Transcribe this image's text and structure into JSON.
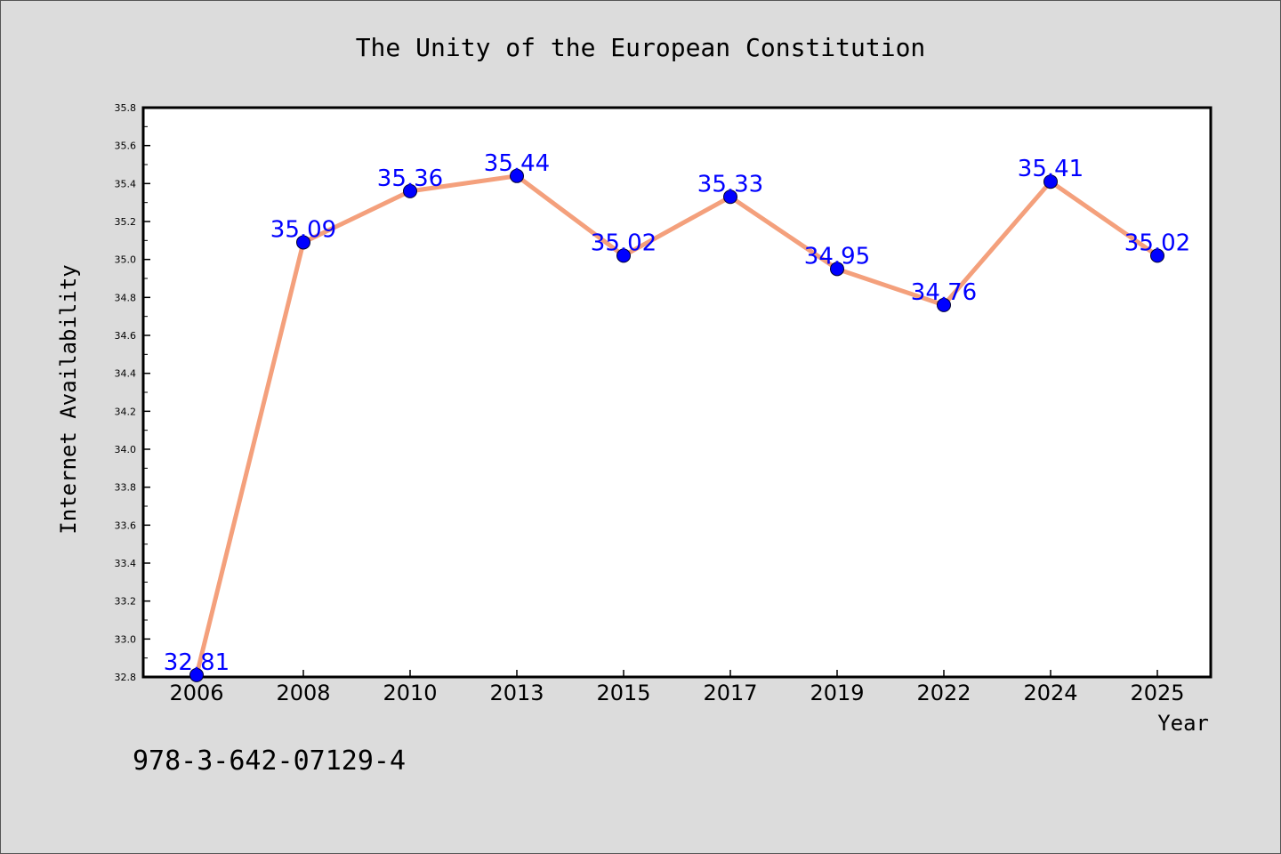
{
  "chart_data": {
    "type": "line",
    "title": "The Unity of the European Constitution",
    "xlabel": "Year",
    "ylabel": "Internet Availability",
    "categories": [
      "2006",
      "2008",
      "2010",
      "2013",
      "2015",
      "2017",
      "2019",
      "2022",
      "2024",
      "2025"
    ],
    "series": [
      {
        "values": [
          32.81,
          35.09,
          35.36,
          35.44,
          35.02,
          35.33,
          34.95,
          34.76,
          35.41,
          35.02
        ],
        "data_labels": [
          "32.81",
          "35.09",
          "35.36",
          "35.44",
          "35.02",
          "35.33",
          "34.95",
          "34.76",
          "35.41",
          "35.02"
        ]
      }
    ],
    "ylim": [
      32.8,
      35.8
    ],
    "yticks": [
      "32.8",
      "33.0",
      "33.2",
      "33.4",
      "33.6",
      "33.8",
      "34.0",
      "34.2",
      "34.4",
      "34.6",
      "34.8",
      "35.0",
      "35.2",
      "35.4",
      "35.6",
      "35.8"
    ],
    "grid": false,
    "colors": {
      "line": "#f4a07c",
      "marker": "#0000ff",
      "label": "#0000ff",
      "background": "#dcdcdc",
      "plot_background": "#ffffff"
    }
  },
  "footer": {
    "isbn": "978-3-642-07129-4"
  }
}
